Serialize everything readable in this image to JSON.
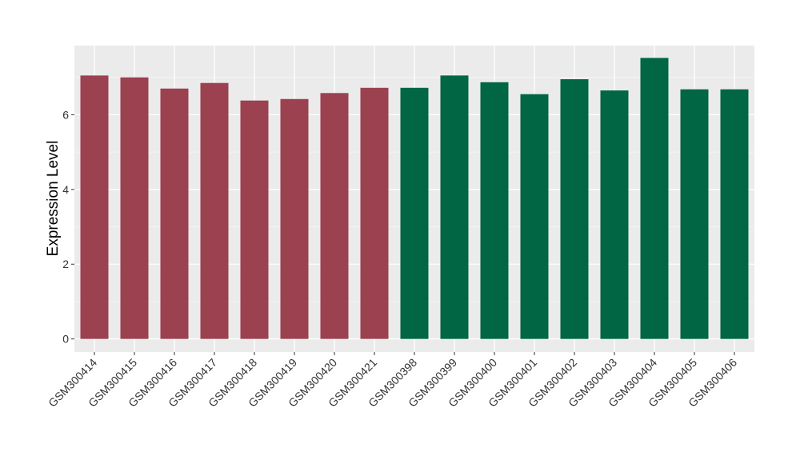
{
  "chart_data": {
    "type": "bar",
    "title": "",
    "xlabel": "",
    "ylabel": "Expression Level",
    "ylim": [
      -0.35,
      7.85
    ],
    "yticks": [
      0,
      2,
      4,
      6
    ],
    "grid": true,
    "legend": "none",
    "categories": [
      "GSM300414",
      "GSM300415",
      "GSM300416",
      "GSM300417",
      "GSM300418",
      "GSM300419",
      "GSM300420",
      "GSM300421",
      "GSM300398",
      "GSM300399",
      "GSM300400",
      "GSM300401",
      "GSM300402",
      "GSM300403",
      "GSM300404",
      "GSM300405",
      "GSM300406"
    ],
    "values": [
      7.05,
      7.0,
      6.7,
      6.85,
      6.38,
      6.42,
      6.58,
      6.72,
      6.72,
      7.05,
      6.87,
      6.55,
      6.95,
      6.65,
      7.52,
      6.68,
      6.68
    ],
    "groups": [
      0,
      0,
      0,
      0,
      0,
      0,
      0,
      0,
      1,
      1,
      1,
      1,
      1,
      1,
      1,
      1,
      1
    ],
    "group_colors": [
      "#9b4150",
      "#006644"
    ]
  }
}
